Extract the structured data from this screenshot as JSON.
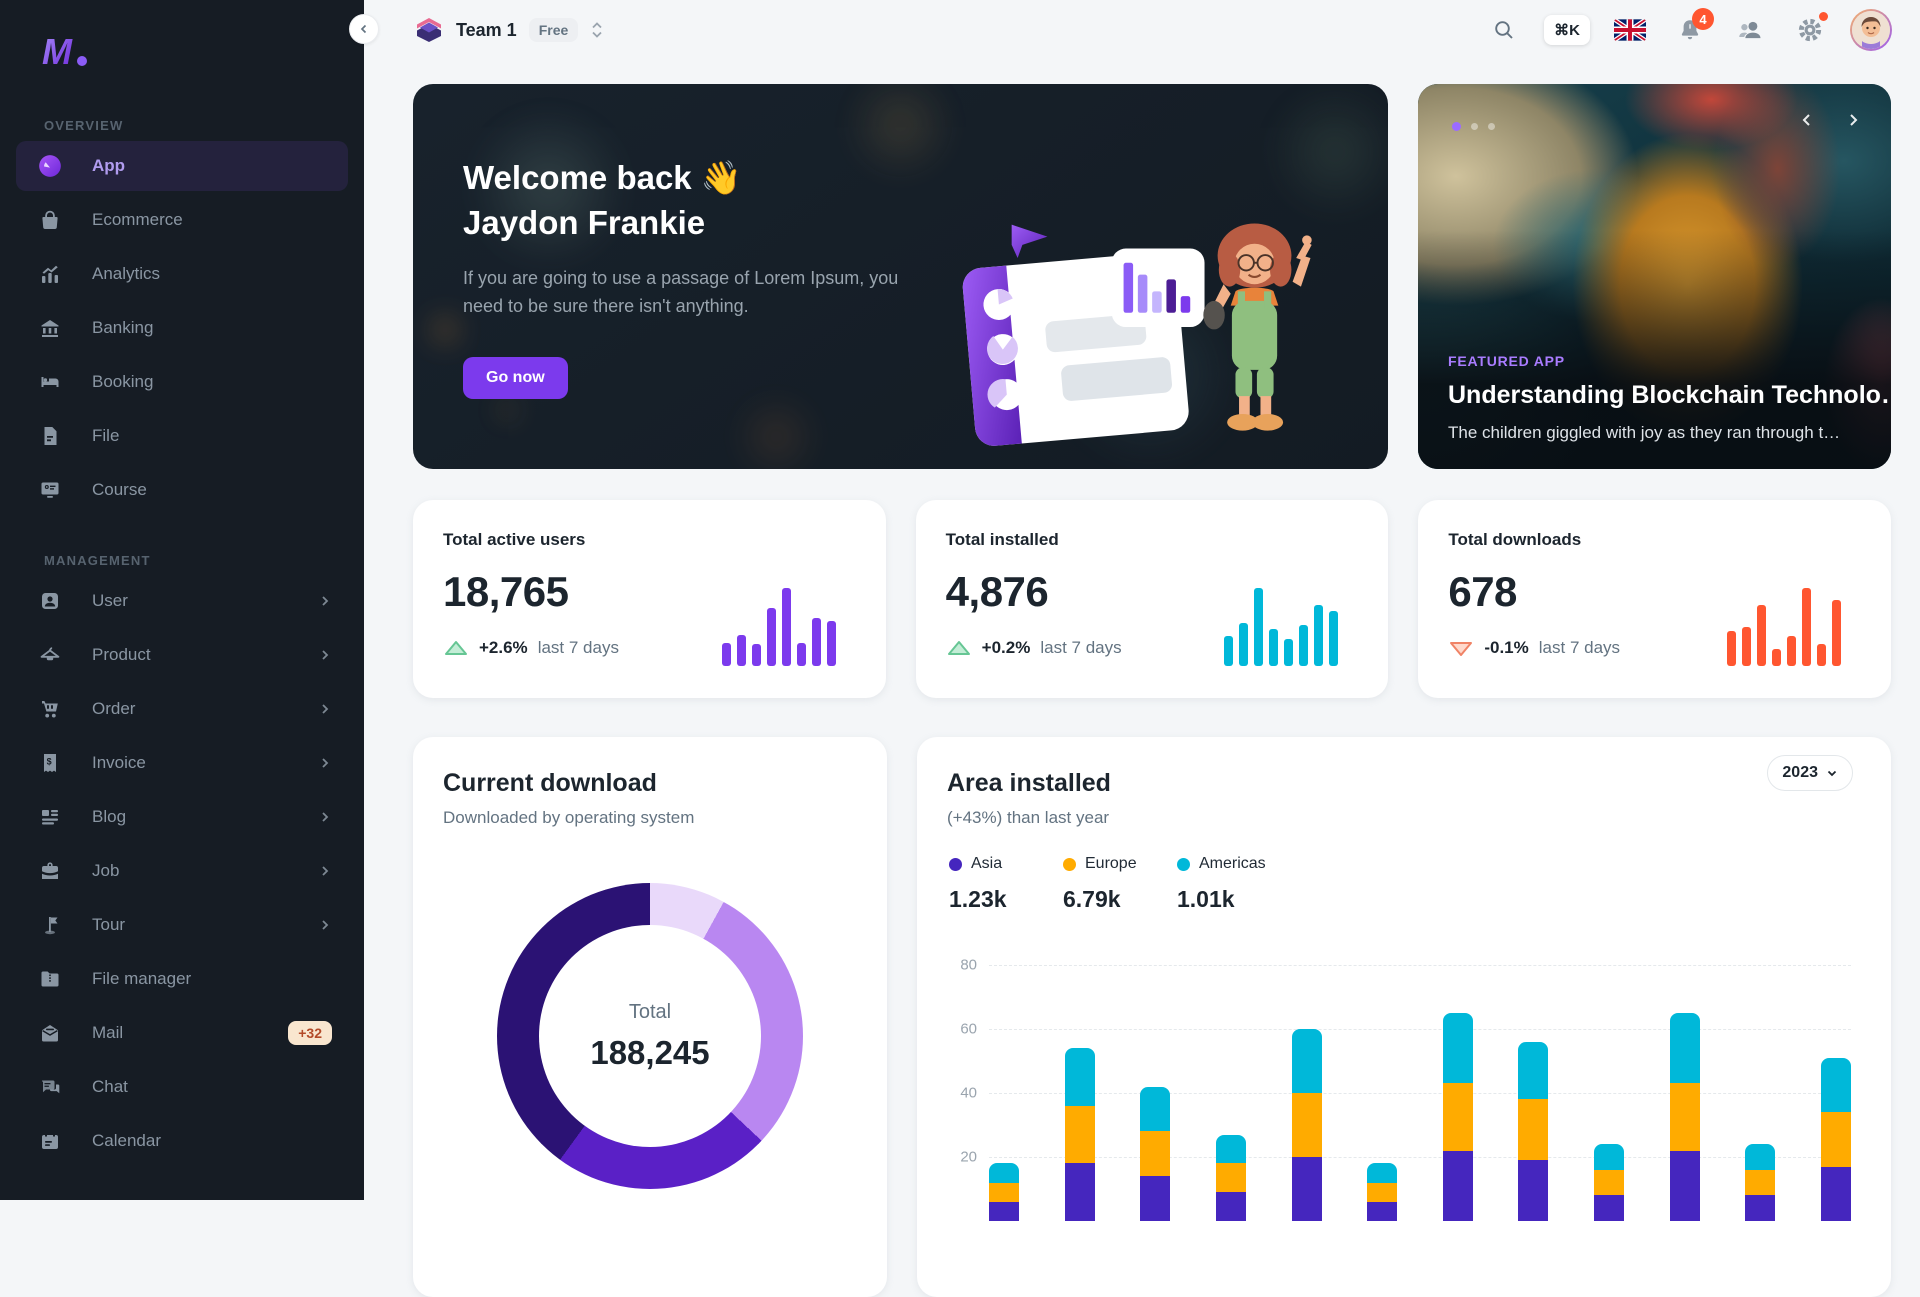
{
  "sidebar": {
    "sections": [
      {
        "label": "OVERVIEW",
        "items": [
          {
            "label": "App"
          },
          {
            "label": "Ecommerce"
          },
          {
            "label": "Analytics"
          },
          {
            "label": "Banking"
          },
          {
            "label": "Booking"
          },
          {
            "label": "File"
          },
          {
            "label": "Course"
          }
        ]
      },
      {
        "label": "MANAGEMENT",
        "items": [
          {
            "label": "User"
          },
          {
            "label": "Product"
          },
          {
            "label": "Order"
          },
          {
            "label": "Invoice"
          },
          {
            "label": "Blog"
          },
          {
            "label": "Job"
          },
          {
            "label": "Tour"
          },
          {
            "label": "File manager"
          },
          {
            "label": "Mail",
            "badge": "+32"
          },
          {
            "label": "Chat"
          },
          {
            "label": "Calendar"
          }
        ]
      }
    ]
  },
  "header": {
    "team_name": "Team 1",
    "plan": "Free",
    "shortcut": "⌘K",
    "notifications": "4"
  },
  "welcome": {
    "title_line1": "Welcome back 👋",
    "title_line2": "Jaydon Frankie",
    "body": "If you are going to use a passage of Lorem Ipsum, you need to be sure there isn't anything.",
    "cta": "Go now"
  },
  "featured": {
    "tag": "FEATURED APP",
    "title": "Understanding Blockchain Technolo…",
    "subtitle": "The children giggled with joy as they ran through t…"
  },
  "stats": [
    {
      "title": "Total active users",
      "value": "18,765",
      "delta": "+2.6%",
      "period": "last 7 days",
      "trend": "up",
      "color": "#7C3AED"
    },
    {
      "title": "Total installed",
      "value": "4,876",
      "delta": "+0.2%",
      "period": "last 7 days",
      "trend": "up",
      "color": "#00B8D9"
    },
    {
      "title": "Total downloads",
      "value": "678",
      "delta": "-0.1%",
      "period": "last 7 days",
      "trend": "down",
      "color": "#FF5630"
    }
  ],
  "current_download": {
    "title": "Current download",
    "subtitle": "Downloaded by operating system",
    "total_label": "Total",
    "total_value": "188,245"
  },
  "area_installed": {
    "title": "Area installed",
    "subtitle": "(+43%) than last year",
    "year": "2023",
    "legend": [
      {
        "name": "Asia",
        "total": "1.23k",
        "color": "#4526BE"
      },
      {
        "name": "Europe",
        "total": "6.79k",
        "color": "#FFAB00"
      },
      {
        "name": "Americas",
        "total": "1.01k",
        "color": "#00B8D9"
      }
    ]
  },
  "chart_data": [
    {
      "id": "spark-active-users",
      "type": "bar",
      "title": "Total active users sparkline",
      "values": [
        30,
        40,
        28,
        75,
        100,
        30,
        62,
        58
      ],
      "value_unit": "relative %",
      "color": "#7C3AED"
    },
    {
      "id": "spark-installed",
      "type": "bar",
      "title": "Total installed sparkline",
      "values": [
        38,
        55,
        100,
        48,
        35,
        52,
        78,
        70
      ],
      "value_unit": "relative %",
      "color": "#00B8D9"
    },
    {
      "id": "spark-downloads",
      "type": "bar",
      "title": "Total downloads sparkline",
      "values": [
        45,
        50,
        78,
        22,
        38,
        100,
        28,
        85
      ],
      "value_unit": "relative %",
      "color": "#FF5630"
    },
    {
      "id": "donut-current-download",
      "type": "pie",
      "title": "Current download",
      "total_label": "Total",
      "total": 188245,
      "segments": [
        {
          "pct": 8,
          "color": "#E9D9FA"
        },
        {
          "pct": 29,
          "color": "#B987F1"
        },
        {
          "pct": 23,
          "color": "#5A20C6"
        },
        {
          "pct": 40,
          "color": "#2B1274"
        }
      ],
      "legend_position": "none"
    },
    {
      "id": "area-installed",
      "type": "bar",
      "stacked": true,
      "title": "Area installed",
      "ylim": [
        0,
        80
      ],
      "yticks": [
        80,
        60,
        40,
        20
      ],
      "grid": "dashed-horizontal",
      "categories": [
        "",
        "",
        "",
        "",
        "",
        "",
        "",
        "",
        "",
        "",
        "",
        ""
      ],
      "note": "x-axis labels cut off below viewport",
      "series": [
        {
          "name": "Asia",
          "color": "#4526BE",
          "values": [
            6,
            18,
            14,
            9,
            20,
            6,
            22,
            19,
            8,
            22,
            8,
            17
          ]
        },
        {
          "name": "Europe",
          "color": "#FFAB00",
          "values": [
            6,
            18,
            14,
            9,
            20,
            6,
            21,
            19,
            8,
            21,
            8,
            17
          ]
        },
        {
          "name": "Americas",
          "color": "#00B8D9",
          "values": [
            6,
            18,
            14,
            9,
            20,
            6,
            22,
            18,
            8,
            22,
            8,
            17
          ]
        }
      ],
      "legend_position": "top-left"
    }
  ]
}
